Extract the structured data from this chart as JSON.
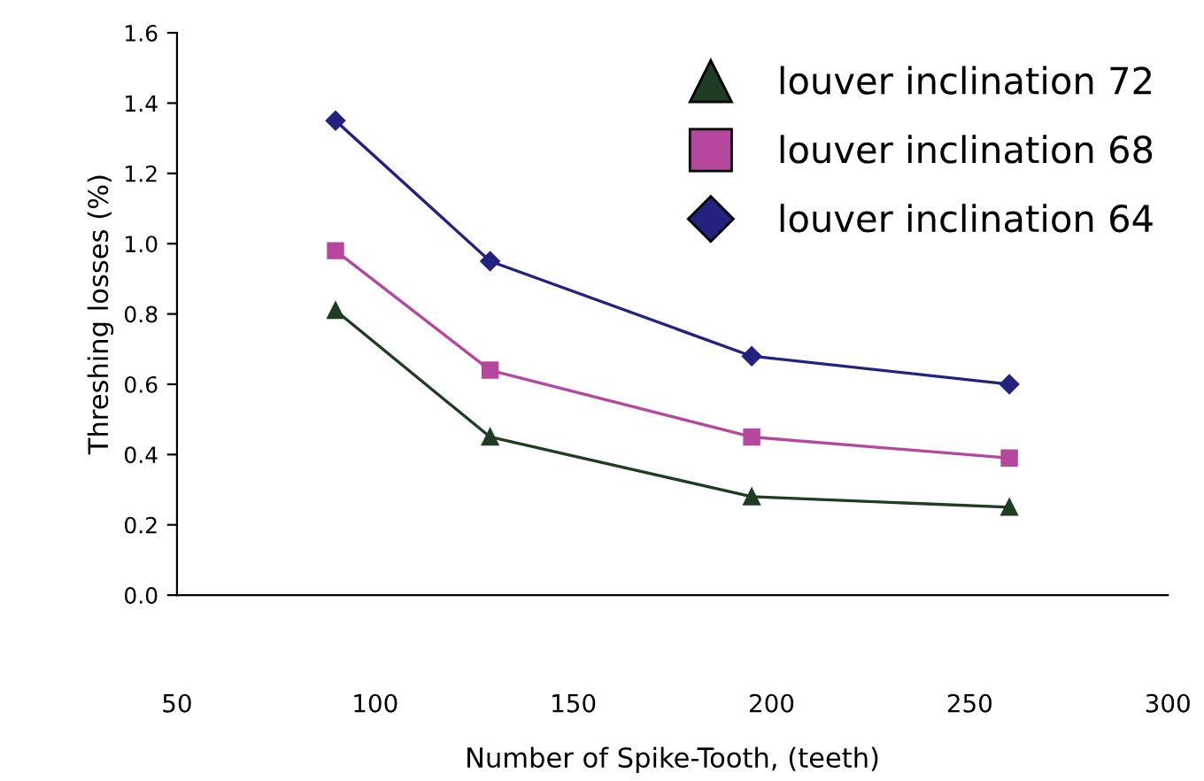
{
  "chart_data": {
    "type": "line",
    "xlabel": "Number of Spike-Tooth, (teeth)",
    "ylabel": "Threshing losses (%)",
    "x": [
      90,
      129,
      195,
      260
    ],
    "series": [
      {
        "name": "louver inclination 72",
        "color": "#1e3d22",
        "marker": "triangle",
        "values": [
          0.81,
          0.45,
          0.28,
          0.25
        ]
      },
      {
        "name": "louver inclination 68",
        "color": "#b6479f",
        "marker": "square",
        "values": [
          0.98,
          0.64,
          0.45,
          0.39
        ]
      },
      {
        "name": "louver inclination 64",
        "color": "#23237f",
        "marker": "diamond",
        "values": [
          1.35,
          0.95,
          0.68,
          0.6
        ]
      }
    ],
    "xlim": [
      50,
      300
    ],
    "xticks": [
      50,
      100,
      150,
      200,
      250,
      300
    ],
    "ylim": [
      0,
      1.6
    ],
    "yticks": [
      {
        "value": 0,
        "label": "0.0"
      },
      {
        "value": 0.2,
        "label": "0.2"
      },
      {
        "value": 0.4,
        "label": "0.4"
      },
      {
        "value": 0.6,
        "label": "0.6"
      },
      {
        "value": 0.8,
        "label": "0.8"
      },
      {
        "value": 1.0,
        "label": "1.0"
      },
      {
        "value": 1.2,
        "label": "1.2"
      },
      {
        "value": 1.4,
        "label": "1.4"
      },
      {
        "value": 1.6,
        "label": "1.6"
      }
    ],
    "grid": false,
    "legend": "top right"
  }
}
